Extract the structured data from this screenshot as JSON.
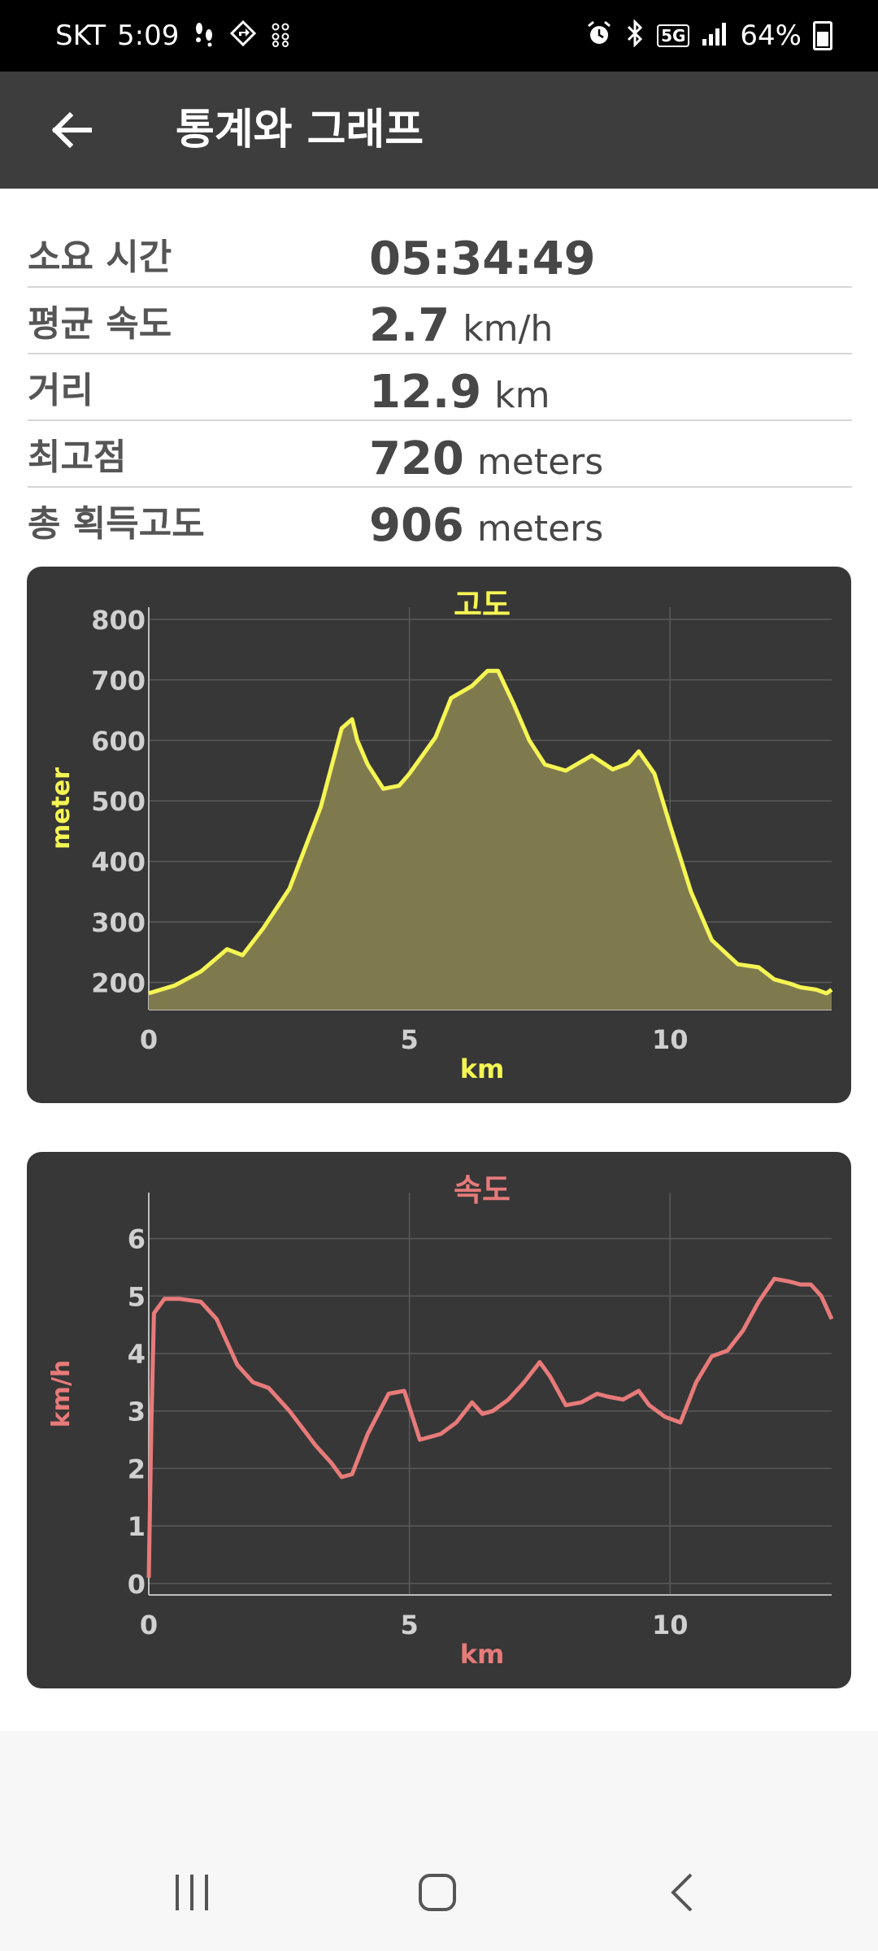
{
  "status_bar": {
    "carrier": "SKT",
    "time": "5:09",
    "network": "5G",
    "battery_percent": "64%",
    "left_icons": [
      "footsteps-icon",
      "navigation-icon",
      "grid-dots-icon"
    ],
    "right_icons": [
      "alarm-icon",
      "bluetooth-icon",
      "5g-icon",
      "signal-icon",
      "battery-icon"
    ]
  },
  "app_bar": {
    "title": "통계와 그래프"
  },
  "stats": [
    {
      "label": "소요 시간",
      "value": "05:34:49",
      "unit": ""
    },
    {
      "label": "평균 속도",
      "value": "2.7",
      "unit": "km/h"
    },
    {
      "label": "거리",
      "value": "12.9",
      "unit": "km"
    },
    {
      "label": "최고점",
      "value": "720",
      "unit": "meters"
    },
    {
      "label": "총 획득고도",
      "value": "906",
      "unit": "meters"
    }
  ],
  "chart_data": [
    {
      "type": "area",
      "title": "고도",
      "xlabel": "km",
      "ylabel": "meter",
      "xlim": [
        0,
        13.1
      ],
      "ylim": [
        155,
        820
      ],
      "xticks": [
        0,
        5,
        10
      ],
      "yticks": [
        200,
        300,
        400,
        500,
        600,
        700,
        800
      ],
      "grid": true,
      "color": "#f5f553",
      "fill": "#7f7a4e",
      "x": [
        0,
        0.5,
        1.0,
        1.3,
        1.5,
        1.8,
        2.2,
        2.7,
        3.3,
        3.7,
        3.9,
        4.0,
        4.2,
        4.5,
        4.8,
        5.0,
        5.5,
        5.8,
        6.2,
        6.5,
        6.7,
        7.0,
        7.3,
        7.6,
        8.0,
        8.2,
        8.5,
        8.9,
        9.2,
        9.4,
        9.7,
        10.0,
        10.4,
        10.8,
        11.3,
        11.7,
        12.0,
        12.3,
        12.5,
        12.8,
        13.0,
        13.1
      ],
      "y": [
        182,
        195,
        218,
        240,
        255,
        245,
        290,
        355,
        490,
        620,
        635,
        600,
        560,
        520,
        525,
        545,
        605,
        670,
        690,
        715,
        715,
        660,
        600,
        560,
        550,
        560,
        575,
        552,
        562,
        582,
        545,
        460,
        350,
        270,
        230,
        225,
        205,
        198,
        192,
        188,
        182,
        188
      ]
    },
    {
      "type": "line",
      "title": "속도",
      "xlabel": "km",
      "ylabel": "km/h",
      "xlim": [
        0,
        13.1
      ],
      "ylim": [
        -0.2,
        6.8
      ],
      "xticks": [
        0,
        5,
        10
      ],
      "yticks": [
        0,
        1,
        2,
        3,
        4,
        5,
        6
      ],
      "grid": true,
      "color": "#e87a7a",
      "x": [
        0,
        0.05,
        0.1,
        0.3,
        0.6,
        1.0,
        1.3,
        1.7,
        2.0,
        2.3,
        2.7,
        3.2,
        3.5,
        3.7,
        3.9,
        4.2,
        4.6,
        4.9,
        5.2,
        5.6,
        5.9,
        6.2,
        6.4,
        6.6,
        6.9,
        7.2,
        7.5,
        7.7,
        8.0,
        8.3,
        8.6,
        8.8,
        9.1,
        9.4,
        9.6,
        9.9,
        10.2,
        10.5,
        10.8,
        11.1,
        11.4,
        11.7,
        12.0,
        12.3,
        12.5,
        12.7,
        12.9,
        13.1
      ],
      "y": [
        0.1,
        2.8,
        4.7,
        4.95,
        4.95,
        4.9,
        4.6,
        3.8,
        3.5,
        3.4,
        3.0,
        2.4,
        2.1,
        1.85,
        1.9,
        2.6,
        3.3,
        3.35,
        2.5,
        2.6,
        2.8,
        3.15,
        2.95,
        3.0,
        3.2,
        3.5,
        3.85,
        3.6,
        3.1,
        3.15,
        3.3,
        3.25,
        3.2,
        3.35,
        3.1,
        2.9,
        2.8,
        3.5,
        3.95,
        4.05,
        4.4,
        4.9,
        5.3,
        5.25,
        5.2,
        5.2,
        5.0,
        4.6
      ]
    }
  ],
  "nav_bar": {
    "icons": [
      "recent-apps-icon",
      "home-icon",
      "back-icon"
    ]
  }
}
